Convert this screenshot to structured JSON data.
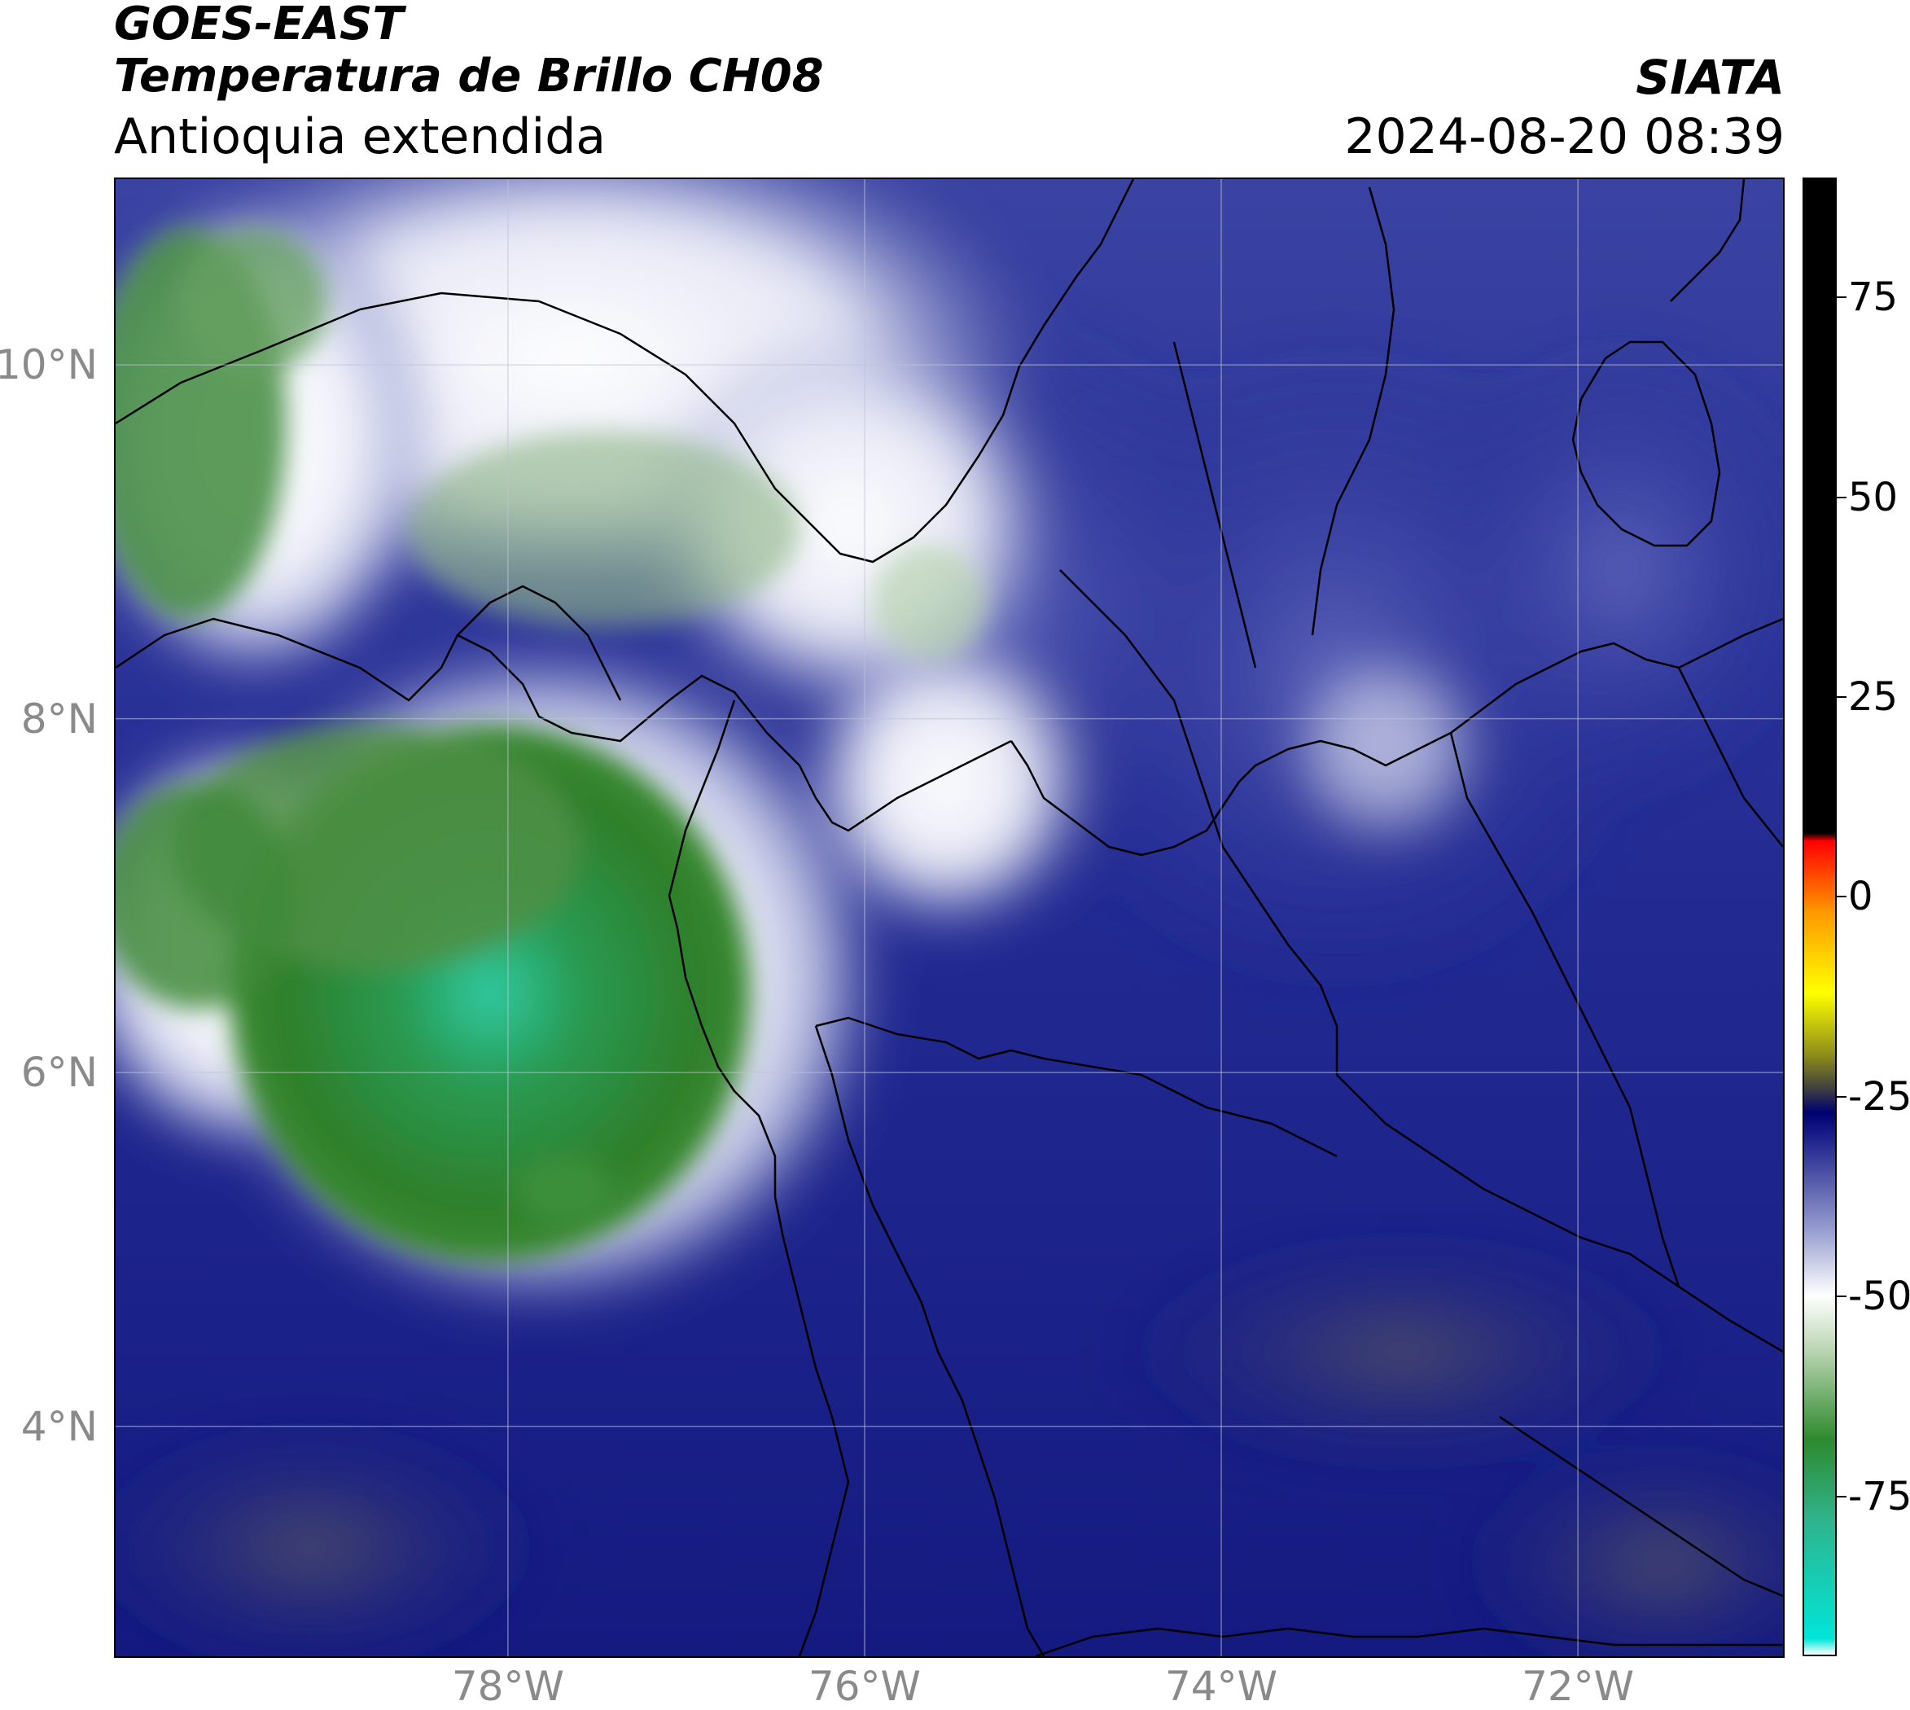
{
  "header": {
    "satellite": "GOES-EAST",
    "product": "Temperatura de Brillo CH08",
    "region": "Antioquia extendida",
    "brand": "SIATA",
    "timestamp": "2024-08-20 08:39"
  },
  "map": {
    "lat_range": [
      2.7,
      11.05
    ],
    "lon_range": [
      -80.2,
      -70.85
    ],
    "lat_ticks": [
      {
        "value": 10,
        "label": "10°N"
      },
      {
        "value": 8,
        "label": "8°N"
      },
      {
        "value": 6,
        "label": "6°N"
      },
      {
        "value": 4,
        "label": "4°N"
      }
    ],
    "lon_ticks": [
      {
        "value": -78,
        "label": "78°W"
      },
      {
        "value": -76,
        "label": "76°W"
      },
      {
        "value": -74,
        "label": "74°W"
      },
      {
        "value": -72,
        "label": "72°W"
      }
    ],
    "grid": true
  },
  "colorbar": {
    "range": [
      -95,
      90
    ],
    "ticks": [
      {
        "value": 75,
        "label": "75"
      },
      {
        "value": 50,
        "label": "50"
      },
      {
        "value": 25,
        "label": "25"
      },
      {
        "value": 0,
        "label": "0"
      },
      {
        "value": -25,
        "label": "-25"
      },
      {
        "value": -50,
        "label": "-50"
      },
      {
        "value": -75,
        "label": "-75"
      }
    ],
    "stops": [
      {
        "value": -95,
        "color": "#ffffff"
      },
      {
        "value": -93,
        "color": "#00e5d8"
      },
      {
        "value": -78,
        "color": "#2fb38c"
      },
      {
        "value": -68,
        "color": "#2e8a2e"
      },
      {
        "value": -57,
        "color": "#b8d4b0"
      },
      {
        "value": -50,
        "color": "#ffffff"
      },
      {
        "value": -42,
        "color": "#9aa0d0"
      },
      {
        "value": -30,
        "color": "#1a1f8a"
      },
      {
        "value": -27,
        "color": "#000070"
      },
      {
        "value": -24,
        "color": "#404040"
      },
      {
        "value": -20,
        "color": "#8a8a1a"
      },
      {
        "value": -12,
        "color": "#ffff00"
      },
      {
        "value": -2,
        "color": "#ff9900"
      },
      {
        "value": 7,
        "color": "#ff0000"
      },
      {
        "value": 8,
        "color": "#000000"
      },
      {
        "value": 90,
        "color": "#000000"
      }
    ]
  }
}
